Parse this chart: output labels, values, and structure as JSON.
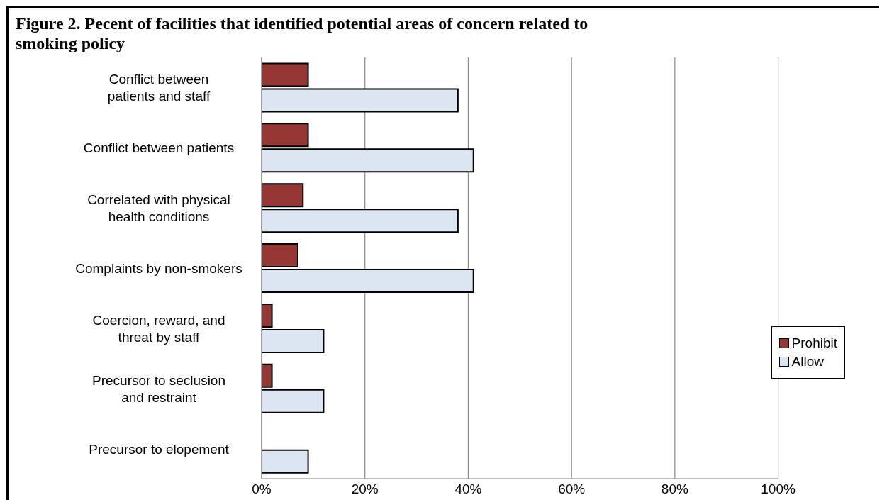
{
  "chart_data": {
    "type": "bar",
    "orientation": "horizontal",
    "title": "Figure 2. Pecent of facilities that identified potential areas of concern related to smoking policy",
    "categories": [
      "Conflict between\npatients and staff",
      "Conflict between patients",
      "Correlated with physical\nhealth conditions",
      "Complaints by non-smokers",
      "Coercion, reward, and\nthreat by staff",
      "Precursor to seclusion\nand restraint",
      "Precursor to elopement"
    ],
    "series": [
      {
        "name": "Prohibit",
        "color": "#953735",
        "values": [
          9,
          9,
          8,
          7,
          2,
          2,
          0
        ]
      },
      {
        "name": "Allow",
        "color": "#dce6f2",
        "values": [
          38,
          41,
          38,
          41,
          12,
          12,
          9
        ]
      }
    ],
    "xlim": [
      0,
      100
    ],
    "xticks": [
      {
        "value": 0,
        "label": "0%"
      },
      {
        "value": 20,
        "label": "20%"
      },
      {
        "value": 40,
        "label": "40%"
      },
      {
        "value": 60,
        "label": "60%"
      },
      {
        "value": 80,
        "label": "80%"
      },
      {
        "value": 100,
        "label": "100%"
      }
    ],
    "grid": "x",
    "legend": "right"
  }
}
